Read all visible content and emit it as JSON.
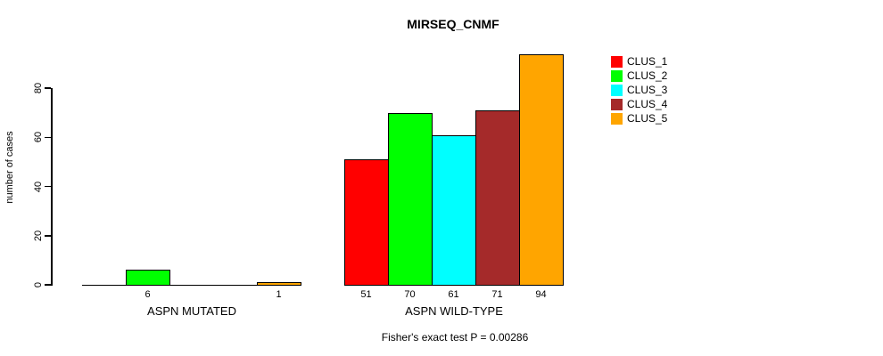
{
  "chart_data": {
    "type": "bar",
    "title": "MIRSEQ_CNMF",
    "ylabel": "number of cases",
    "xlabel": "",
    "ylim": [
      0,
      94
    ],
    "yticks": [
      0,
      20,
      40,
      60,
      80
    ],
    "grid": false,
    "legend_position": "top-right",
    "bar_outline_color": "#000000",
    "categories": [
      "ASPN MUTATED",
      "ASPN WILD-TYPE"
    ],
    "series": [
      {
        "name": "CLUS_1",
        "color": "#ff0000",
        "values": [
          0,
          51
        ]
      },
      {
        "name": "CLUS_2",
        "color": "#00ff00",
        "values": [
          6,
          70
        ]
      },
      {
        "name": "CLUS_3",
        "color": "#00ffff",
        "values": [
          0,
          61
        ]
      },
      {
        "name": "CLUS_4",
        "color": "#a52a2a",
        "values": [
          0,
          71
        ]
      },
      {
        "name": "CLUS_5",
        "color": "#ffa500",
        "values": [
          1,
          94
        ]
      }
    ],
    "value_labels_shown": {
      "ASPN MUTATED": [
        "6",
        "1"
      ],
      "ASPN WILD-TYPE": [
        "51",
        "70",
        "61",
        "71",
        "94"
      ]
    },
    "annotation": "Fisher's exact test P = 0.00286"
  }
}
